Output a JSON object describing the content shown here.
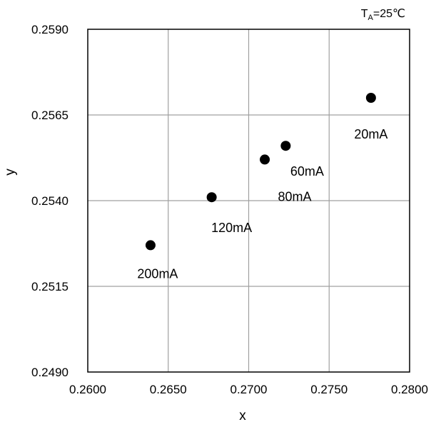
{
  "chart_data": {
    "type": "scatter",
    "title": "",
    "xlabel": "x",
    "ylabel": "y",
    "xlim": [
      0.26,
      0.28
    ],
    "ylim": [
      0.249,
      0.259
    ],
    "xticks": [
      "0.2600",
      "0.2650",
      "0.2700",
      "0.2750",
      "0.2800"
    ],
    "yticks": [
      "0.2590",
      "0.2565",
      "0.2540",
      "0.2515",
      "0.2490"
    ],
    "grid": true,
    "annotation": {
      "prefix": "T",
      "sub": "A",
      "suffix": "=25℃"
    },
    "colors": {
      "marker": "#000000",
      "grid": "#a0a0a0",
      "frame": "#000000"
    },
    "series": [
      {
        "points": [
          {
            "x": 0.2776,
            "y": 0.257,
            "label": "20mA"
          },
          {
            "x": 0.2723,
            "y": 0.2556,
            "label": "60mA"
          },
          {
            "x": 0.271,
            "y": 0.2552,
            "label": "80mA"
          },
          {
            "x": 0.2677,
            "y": 0.2541,
            "label": "120mA"
          },
          {
            "x": 0.2639,
            "y": 0.2527,
            "label": "200mA"
          }
        ]
      }
    ]
  }
}
